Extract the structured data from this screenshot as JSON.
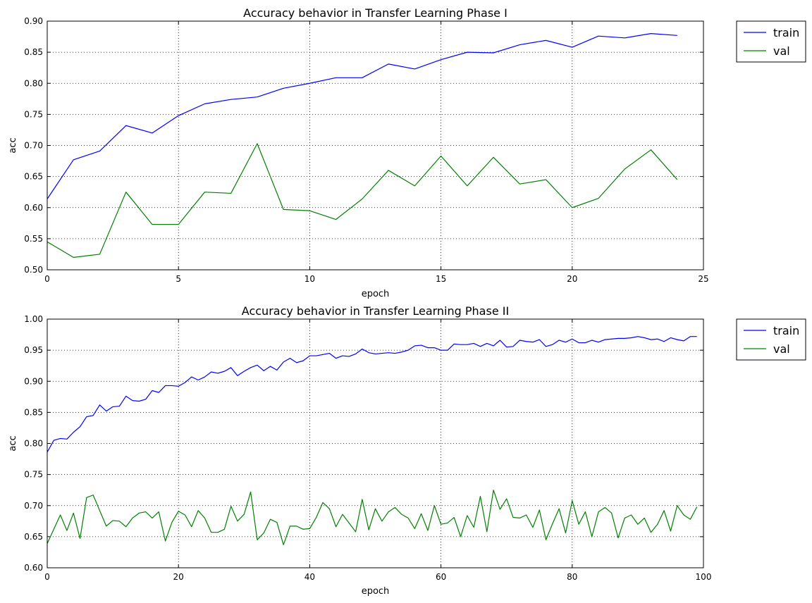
{
  "chart_data": [
    {
      "type": "line",
      "title": "Accuracy behavior in Transfer Learning Phase I",
      "xlabel": "epoch",
      "ylabel": "acc",
      "xlim": [
        0,
        25
      ],
      "ylim": [
        0.5,
        0.9
      ],
      "xticks": [
        "0",
        "5",
        "10",
        "15",
        "20",
        "25"
      ],
      "yticks": [
        "0.50",
        "0.55",
        "0.60",
        "0.65",
        "0.70",
        "0.75",
        "0.80",
        "0.85",
        "0.90"
      ],
      "grid": true,
      "legend": "outside-right",
      "x": [
        0,
        1,
        2,
        3,
        4,
        5,
        6,
        7,
        8,
        9,
        10,
        11,
        12,
        13,
        14,
        15,
        16,
        17,
        18,
        19,
        20,
        21,
        22,
        23,
        24
      ],
      "series": [
        {
          "name": "train",
          "color": "#0000ff",
          "values": [
            0.614,
            0.677,
            0.691,
            0.732,
            0.72,
            0.748,
            0.767,
            0.774,
            0.778,
            0.792,
            0.8,
            0.809,
            0.809,
            0.831,
            0.823,
            0.838,
            0.85,
            0.849,
            0.862,
            0.869,
            0.858,
            0.876,
            0.873,
            0.88,
            0.877
          ]
        },
        {
          "name": "val",
          "color": "#008000",
          "values": [
            0.545,
            0.52,
            0.525,
            0.625,
            0.573,
            0.573,
            0.625,
            0.623,
            0.703,
            0.597,
            0.595,
            0.581,
            0.614,
            0.66,
            0.635,
            0.683,
            0.635,
            0.681,
            0.638,
            0.645,
            0.6,
            0.615,
            0.662,
            0.693,
            0.645
          ]
        }
      ]
    },
    {
      "type": "line",
      "title": "Accuracy behavior in Transfer Learning Phase II",
      "xlabel": "epoch",
      "ylabel": "acc",
      "xlim": [
        0,
        100
      ],
      "ylim": [
        0.6,
        1.0
      ],
      "xticks": [
        "0",
        "20",
        "40",
        "60",
        "80",
        "100"
      ],
      "yticks": [
        "0.60",
        "0.65",
        "0.70",
        "0.75",
        "0.80",
        "0.85",
        "0.90",
        "0.95",
        "1.00"
      ],
      "grid": true,
      "legend": "outside-right",
      "x": [
        0,
        1,
        2,
        3,
        4,
        5,
        6,
        7,
        8,
        9,
        10,
        11,
        12,
        13,
        14,
        15,
        16,
        17,
        18,
        19,
        20,
        21,
        22,
        23,
        24,
        25,
        26,
        27,
        28,
        29,
        30,
        31,
        32,
        33,
        34,
        35,
        36,
        37,
        38,
        39,
        40,
        41,
        42,
        43,
        44,
        45,
        46,
        47,
        48,
        49,
        50,
        51,
        52,
        53,
        54,
        55,
        56,
        57,
        58,
        59,
        60,
        61,
        62,
        63,
        64,
        65,
        66,
        67,
        68,
        69,
        70,
        71,
        72,
        73,
        74,
        75,
        76,
        77,
        78,
        79,
        80,
        81,
        82,
        83,
        84,
        85,
        86,
        87,
        88,
        89,
        90,
        91,
        92,
        93,
        94,
        95,
        96,
        97,
        98,
        99
      ],
      "series": [
        {
          "name": "train",
          "color": "#0000ff",
          "values": [
            0.786,
            0.805,
            0.808,
            0.807,
            0.818,
            0.827,
            0.843,
            0.845,
            0.862,
            0.852,
            0.859,
            0.86,
            0.876,
            0.869,
            0.868,
            0.871,
            0.885,
            0.882,
            0.893,
            0.893,
            0.892,
            0.898,
            0.907,
            0.902,
            0.907,
            0.915,
            0.913,
            0.916,
            0.922,
            0.909,
            0.916,
            0.922,
            0.926,
            0.917,
            0.924,
            0.918,
            0.931,
            0.937,
            0.93,
            0.933,
            0.941,
            0.941,
            0.943,
            0.945,
            0.937,
            0.941,
            0.94,
            0.944,
            0.952,
            0.946,
            0.944,
            0.945,
            0.946,
            0.945,
            0.947,
            0.95,
            0.957,
            0.958,
            0.954,
            0.954,
            0.95,
            0.95,
            0.96,
            0.959,
            0.959,
            0.961,
            0.956,
            0.961,
            0.957,
            0.966,
            0.955,
            0.956,
            0.966,
            0.964,
            0.963,
            0.967,
            0.956,
            0.959,
            0.966,
            0.963,
            0.968,
            0.962,
            0.962,
            0.966,
            0.963,
            0.967,
            0.968,
            0.969,
            0.969,
            0.97,
            0.972,
            0.97,
            0.967,
            0.968,
            0.964,
            0.97,
            0.967,
            0.965,
            0.972,
            0.972
          ]
        },
        {
          "name": "val",
          "color": "#008000",
          "values": [
            0.639,
            0.662,
            0.685,
            0.66,
            0.688,
            0.647,
            0.713,
            0.717,
            0.692,
            0.667,
            0.676,
            0.675,
            0.666,
            0.68,
            0.688,
            0.69,
            0.68,
            0.69,
            0.643,
            0.673,
            0.691,
            0.685,
            0.666,
            0.692,
            0.68,
            0.657,
            0.657,
            0.662,
            0.699,
            0.675,
            0.686,
            0.722,
            0.645,
            0.656,
            0.678,
            0.673,
            0.637,
            0.667,
            0.667,
            0.662,
            0.663,
            0.681,
            0.705,
            0.695,
            0.666,
            0.686,
            0.672,
            0.658,
            0.71,
            0.661,
            0.695,
            0.675,
            0.69,
            0.697,
            0.686,
            0.68,
            0.663,
            0.687,
            0.66,
            0.7,
            0.67,
            0.672,
            0.681,
            0.65,
            0.684,
            0.665,
            0.715,
            0.658,
            0.725,
            0.694,
            0.711,
            0.681,
            0.68,
            0.685,
            0.665,
            0.693,
            0.645,
            0.671,
            0.695,
            0.656,
            0.708,
            0.67,
            0.69,
            0.65,
            0.69,
            0.697,
            0.688,
            0.648,
            0.68,
            0.685,
            0.67,
            0.68,
            0.657,
            0.67,
            0.692,
            0.659,
            0.7,
            0.685,
            0.678,
            0.698
          ]
        }
      ]
    }
  ]
}
